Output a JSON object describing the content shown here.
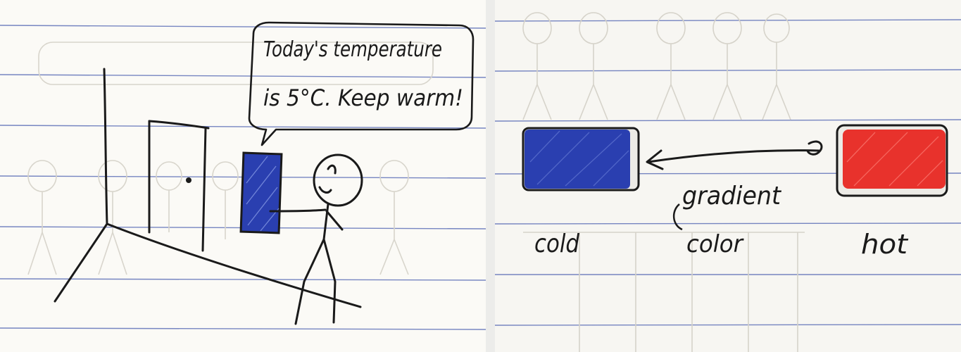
{
  "left_panel": {
    "speech_line_1": "Today's temperature",
    "speech_line_2": "is 5°C. Keep warm!"
  },
  "right_panel": {
    "cold_label": "cold",
    "gradient_label_1": "gradient",
    "gradient_label_2": "color",
    "hot_label": "hot"
  },
  "colors": {
    "ruled_line": "#4a5fb0",
    "ink": "#1a1a1a",
    "cold": "#2a3fb0",
    "hot": "#e8322c"
  }
}
